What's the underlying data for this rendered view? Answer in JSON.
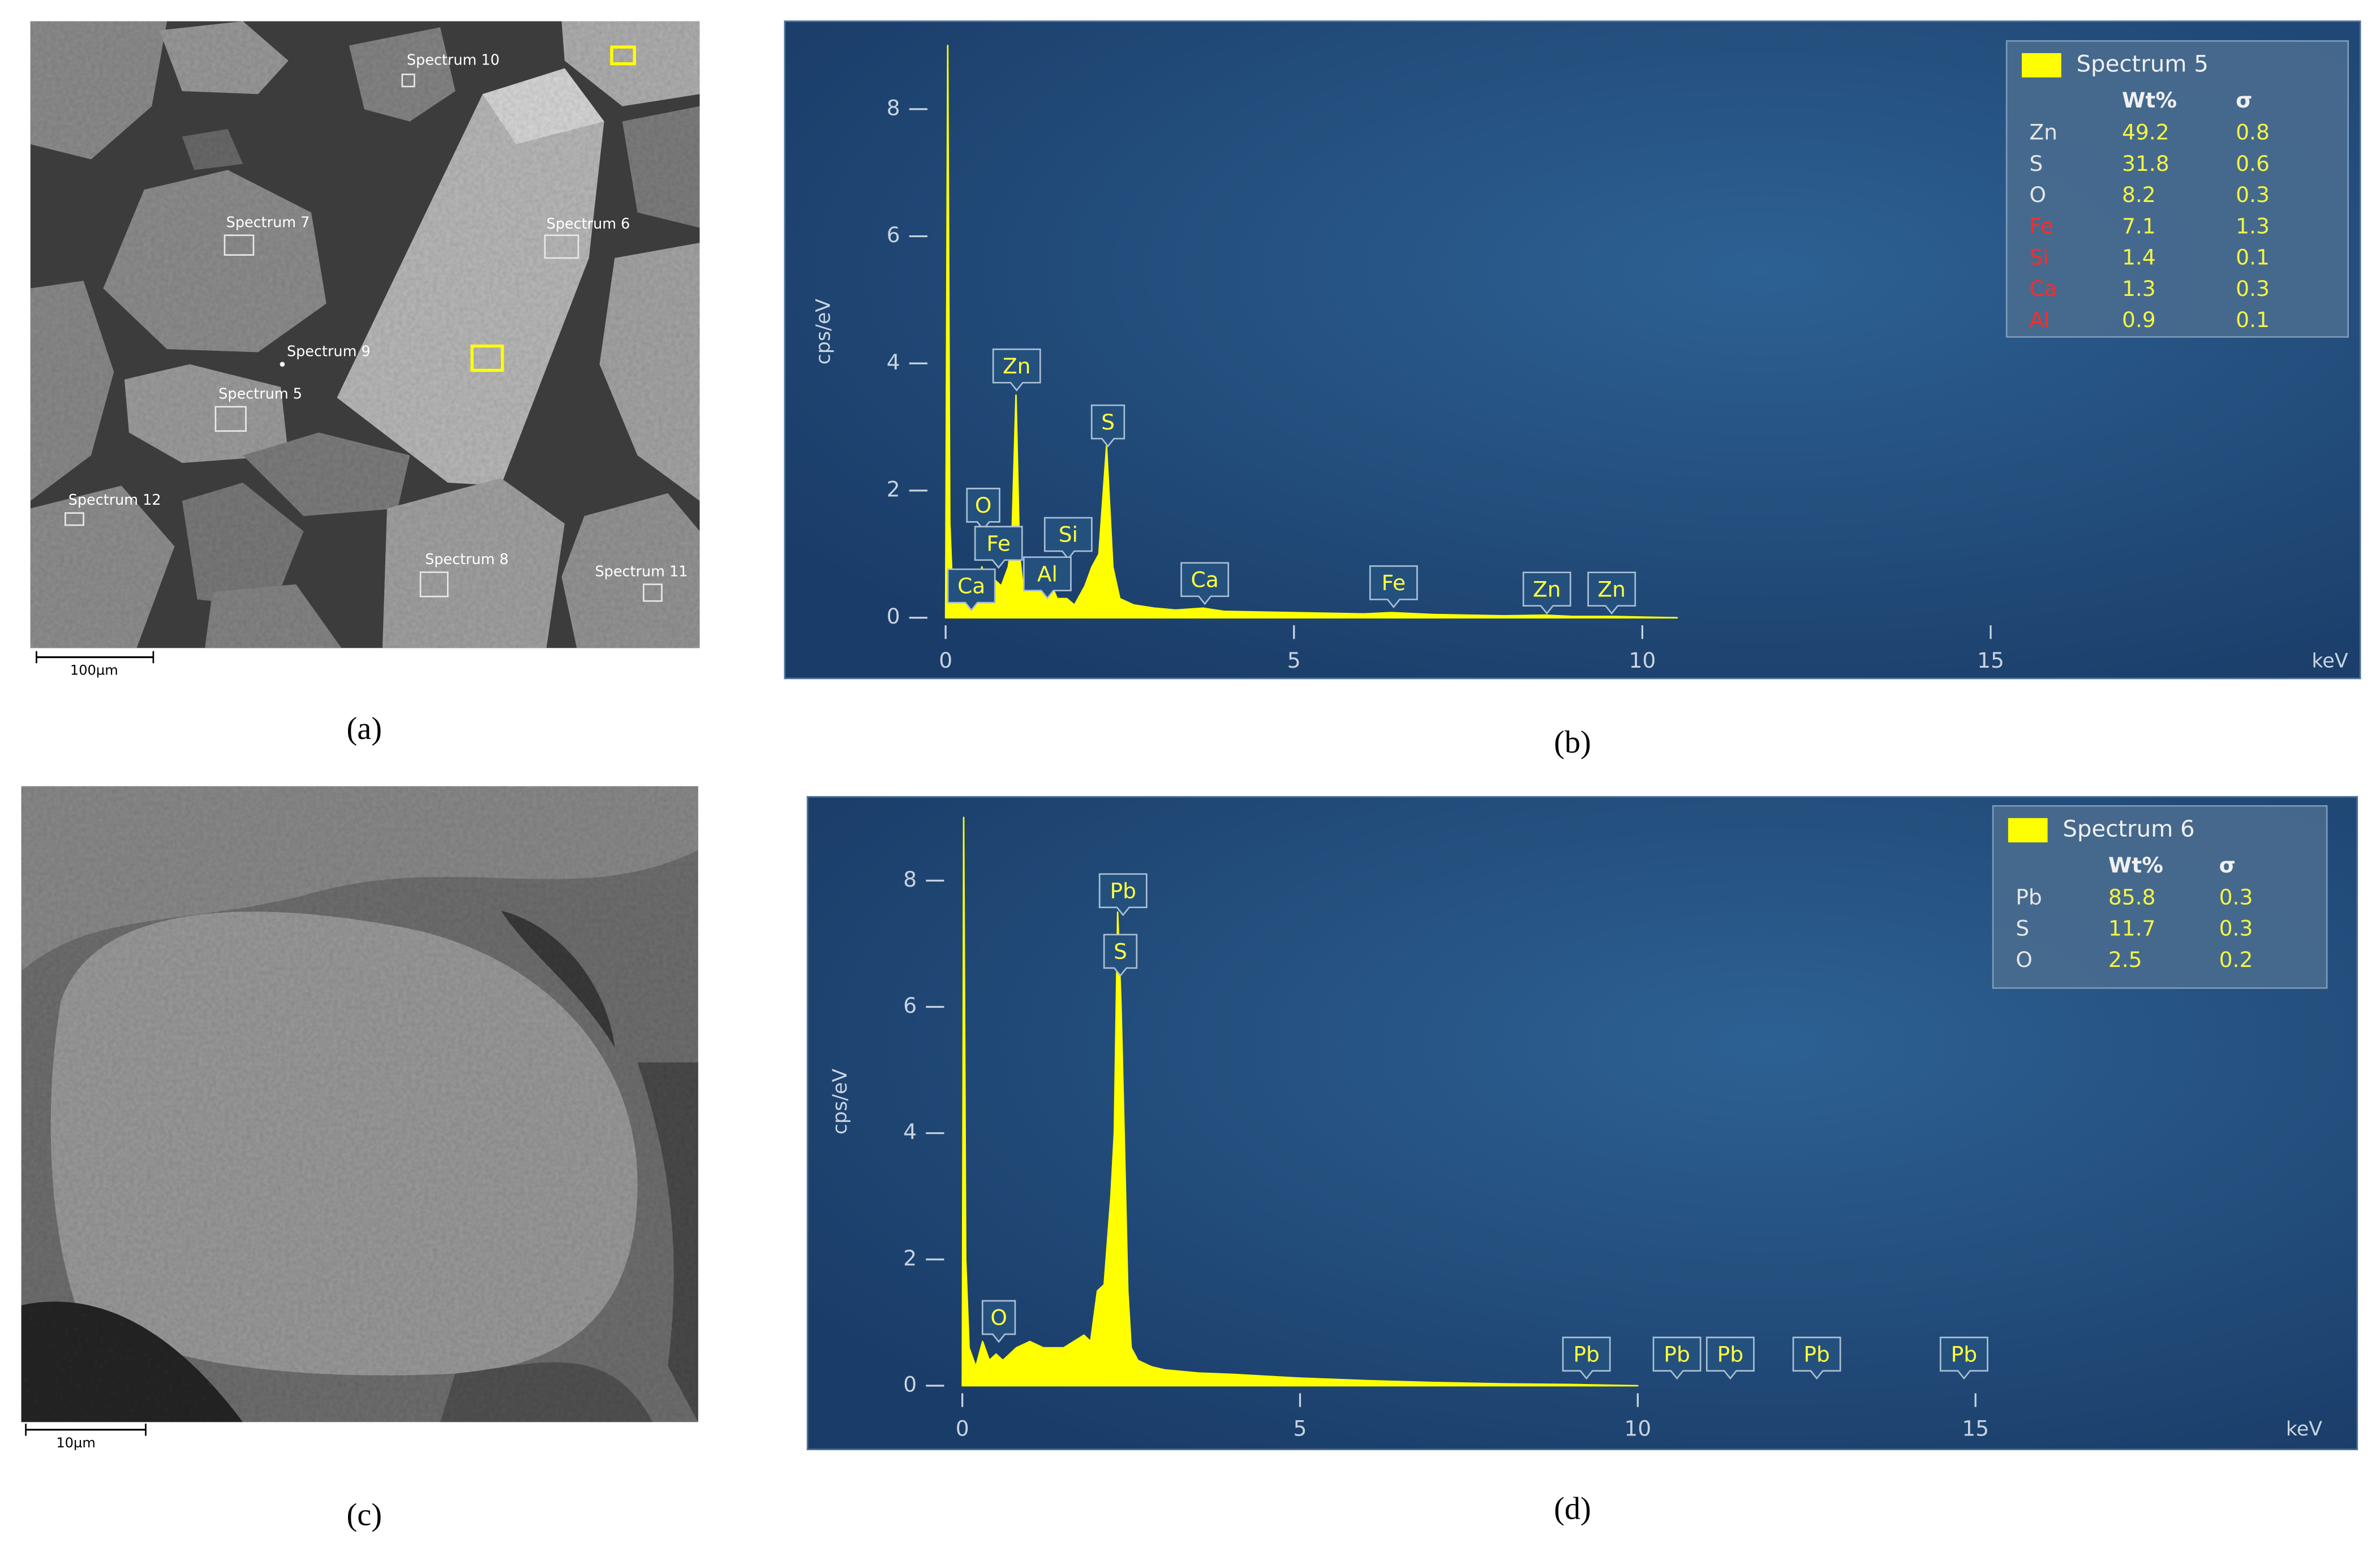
{
  "panel_labels": [
    "(a)",
    "(b)",
    "(c)",
    "(d)"
  ],
  "images": [
    {
      "scale_bar": "100µm",
      "labels": [
        "Spectrum 10",
        "Spectrum 7",
        "Spectrum 6",
        "Spectrum 9",
        "Spectrum 5",
        "Spectrum 12",
        "Spectrum 8",
        "Spectrum 11"
      ]
    },
    {
      "scale_bar": "10µm"
    }
  ],
  "chart_data": [
    {
      "type": "area",
      "xlabel": "keV",
      "ylabel": "cps/eV",
      "xlim": [
        0,
        20
      ],
      "ylim": [
        0,
        9
      ],
      "xticks": [
        0,
        5,
        10,
        15
      ],
      "yticks": [
        0,
        2,
        4,
        6,
        8
      ],
      "series": [
        {
          "name": "Spectrum 5",
          "color": "#ffff00",
          "x": [
            0,
            0.03,
            0.06,
            0.1,
            0.2,
            0.28,
            0.35,
            0.45,
            0.52,
            0.6,
            0.7,
            0.8,
            0.9,
            0.95,
            1.01,
            1.06,
            1.1,
            1.2,
            1.3,
            1.4,
            1.49,
            1.6,
            1.74,
            1.85,
            2.0,
            2.1,
            2.2,
            2.31,
            2.4,
            2.5,
            2.7,
            3.0,
            3.3,
            3.7,
            4.0,
            5,
            6,
            6.4,
            7,
            8,
            8.6,
            9,
            9.6,
            10,
            10.5
          ],
          "values": [
            0,
            9.0,
            1.5,
            0.4,
            0.3,
            0.35,
            0.3,
            0.35,
            0.8,
            0.5,
            0.6,
            0.5,
            0.8,
            1.2,
            3.5,
            1.0,
            0.6,
            0.4,
            0.5,
            0.45,
            0.6,
            0.3,
            0.3,
            0.2,
            0.5,
            0.8,
            1.0,
            2.7,
            0.8,
            0.3,
            0.2,
            0.15,
            0.12,
            0.15,
            0.1,
            0.08,
            0.06,
            0.08,
            0.05,
            0.03,
            0.04,
            0.02,
            0.02,
            0.01,
            0
          ]
        }
      ],
      "annotations": [
        {
          "text": "Zn",
          "x": 1.02,
          "y": 3.96
        },
        {
          "text": "S",
          "x": 2.33,
          "y": 3.08
        },
        {
          "text": "O",
          "x": 0.54,
          "y": 1.77
        },
        {
          "text": "Si",
          "x": 1.76,
          "y": 1.31
        },
        {
          "text": "Fe",
          "x": 0.76,
          "y": 1.17
        },
        {
          "text": "Al",
          "x": 1.46,
          "y": 0.69
        },
        {
          "text": "Ca",
          "x": 0.37,
          "y": 0.5
        },
        {
          "text": "Ca",
          "x": 3.72,
          "y": 0.6
        },
        {
          "text": "Fe",
          "x": 6.43,
          "y": 0.55
        },
        {
          "text": "Zn",
          "x": 8.63,
          "y": 0.45
        },
        {
          "text": "Zn",
          "x": 9.56,
          "y": 0.45
        }
      ],
      "table": {
        "columns": [
          "Wt%",
          "σ"
        ],
        "rows": [
          {
            "label": "Zn",
            "color": "#e6e6e6",
            "values": [
              49.2,
              0.8
            ]
          },
          {
            "label": "S",
            "color": "#e6e6e6",
            "values": [
              31.8,
              0.6
            ]
          },
          {
            "label": "O",
            "color": "#e6e6e6",
            "values": [
              8.2,
              0.3
            ]
          },
          {
            "label": "Fe",
            "color": "#ff2a2a",
            "values": [
              7.1,
              1.3
            ]
          },
          {
            "label": "Si",
            "color": "#ff2a2a",
            "values": [
              1.4,
              0.1
            ]
          },
          {
            "label": "Ca",
            "color": "#ff2a2a",
            "values": [
              1.3,
              0.3
            ]
          },
          {
            "label": "Al",
            "color": "#ff2a2a",
            "values": [
              0.9,
              0.1
            ]
          }
        ]
      }
    },
    {
      "type": "area",
      "xlabel": "keV",
      "ylabel": "cps/eV",
      "xlim": [
        0,
        20
      ],
      "ylim": [
        0,
        9
      ],
      "xticks": [
        0,
        5,
        10,
        15
      ],
      "yticks": [
        0,
        2,
        4,
        6,
        8
      ],
      "series": [
        {
          "name": "Spectrum 6",
          "color": "#ffff00",
          "x": [
            0,
            0.02,
            0.05,
            0.1,
            0.2,
            0.3,
            0.4,
            0.5,
            0.6,
            0.8,
            1.0,
            1.2,
            1.5,
            1.8,
            1.9,
            2.0,
            2.1,
            2.2,
            2.25,
            2.3,
            2.35,
            2.4,
            2.45,
            2.5,
            2.6,
            2.8,
            3.0,
            3.5,
            4,
            5,
            6,
            7,
            8,
            9,
            10
          ],
          "values": [
            0,
            9.0,
            2,
            0.6,
            0.3,
            0.7,
            0.4,
            0.5,
            0.4,
            0.6,
            0.7,
            0.6,
            0.6,
            0.8,
            0.7,
            1.5,
            1.6,
            3.0,
            4.0,
            7.5,
            6.0,
            3.8,
            1.5,
            0.6,
            0.4,
            0.3,
            0.25,
            0.2,
            0.18,
            0.12,
            0.08,
            0.05,
            0.03,
            0.02,
            0
          ]
        }
      ],
      "annotations": [
        {
          "text": "Pb",
          "x": 2.38,
          "y": 7.84
        },
        {
          "text": "S",
          "x": 2.34,
          "y": 6.88
        },
        {
          "text": "O",
          "x": 0.54,
          "y": 1.08
        },
        {
          "text": "Pb",
          "x": 9.24,
          "y": 0.5
        },
        {
          "text": "Pb",
          "x": 10.58,
          "y": 0.5
        },
        {
          "text": "Pb",
          "x": 11.37,
          "y": 0.5
        },
        {
          "text": "Pb",
          "x": 12.65,
          "y": 0.5
        },
        {
          "text": "Pb",
          "x": 14.83,
          "y": 0.5
        }
      ],
      "table": {
        "columns": [
          "Wt%",
          "σ"
        ],
        "rows": [
          {
            "label": "Pb",
            "color": "#e6e6e6",
            "values": [
              85.8,
              0.3
            ]
          },
          {
            "label": "S",
            "color": "#e6e6e6",
            "values": [
              11.7,
              0.3
            ]
          },
          {
            "label": "O",
            "color": "#e6e6e6",
            "values": [
              2.5,
              0.2
            ]
          }
        ]
      }
    }
  ]
}
